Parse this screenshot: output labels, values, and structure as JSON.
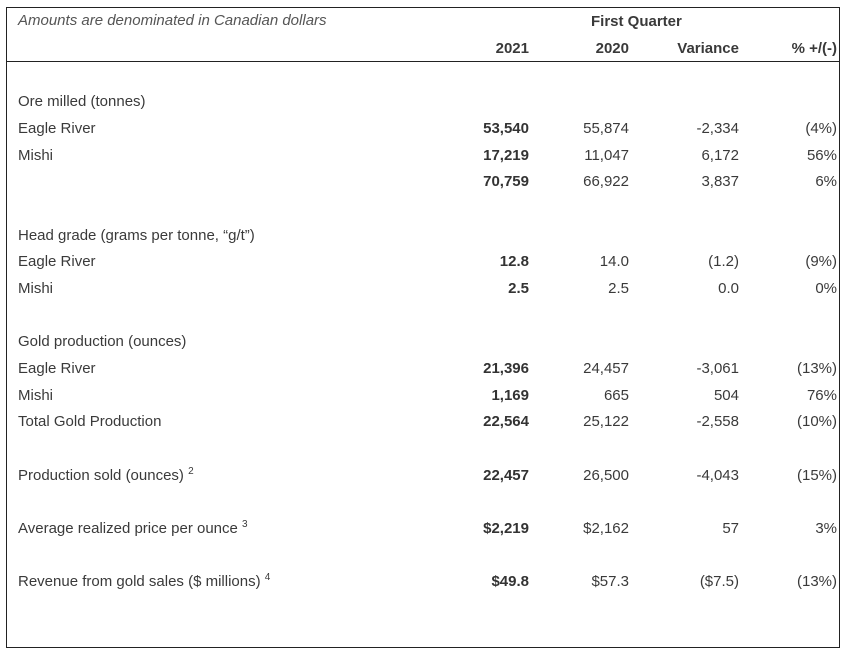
{
  "note": "Amounts are denominated in Canadian dollars",
  "period": "First Quarter",
  "columns": [
    "2021",
    "2020",
    "Variance",
    "% +/(-)"
  ],
  "rows": [
    {
      "label": "Ore milled (tonnes)",
      "sup": "",
      "values": [
        "",
        "",
        "",
        ""
      ]
    },
    {
      "label": "Eagle River",
      "sup": "",
      "values": [
        "53,540",
        "55,874",
        "-2,334",
        "(4%)"
      ]
    },
    {
      "label": "Mishi",
      "sup": "",
      "values": [
        "17,219",
        "11,047",
        "6,172",
        "56%"
      ]
    },
    {
      "label": "",
      "sup": "",
      "values": [
        "70,759",
        "66,922",
        "3,837",
        "6%"
      ]
    },
    {
      "label": "Head grade (grams per tonne, “g/t”)",
      "sup": "",
      "values": [
        "",
        "",
        "",
        ""
      ]
    },
    {
      "label": "Eagle River",
      "sup": "",
      "values": [
        "12.8",
        "14.0",
        "(1.2)",
        "(9%)"
      ]
    },
    {
      "label": "Mishi",
      "sup": "",
      "values": [
        "2.5",
        "2.5",
        "0.0",
        "0%"
      ]
    },
    {
      "label": "Gold production (ounces)",
      "sup": "",
      "values": [
        "",
        "",
        "",
        ""
      ]
    },
    {
      "label": "Eagle River",
      "sup": "",
      "values": [
        "21,396",
        "24,457",
        "-3,061",
        "(13%)"
      ]
    },
    {
      "label": "Mishi",
      "sup": "",
      "values": [
        "1,169",
        "665",
        "504",
        "76%"
      ]
    },
    {
      "label": "Total Gold Production",
      "sup": "",
      "values": [
        "22,564",
        "25,122",
        "-2,558",
        "(10%)"
      ]
    },
    {
      "label": "Production sold (ounces)",
      "sup": "2",
      "values": [
        "22,457",
        "26,500",
        "-4,043",
        "(15%)"
      ]
    },
    {
      "label": "Average realized price per ounce",
      "sup": "3",
      "values": [
        "$2,219",
        "$2,162",
        "57",
        "3%"
      ]
    },
    {
      "label": "Revenue from gold sales ($ millions)",
      "sup": "4",
      "values": [
        "$49.8",
        "$57.3",
        "($7.5)",
        "(13%)"
      ]
    }
  ]
}
